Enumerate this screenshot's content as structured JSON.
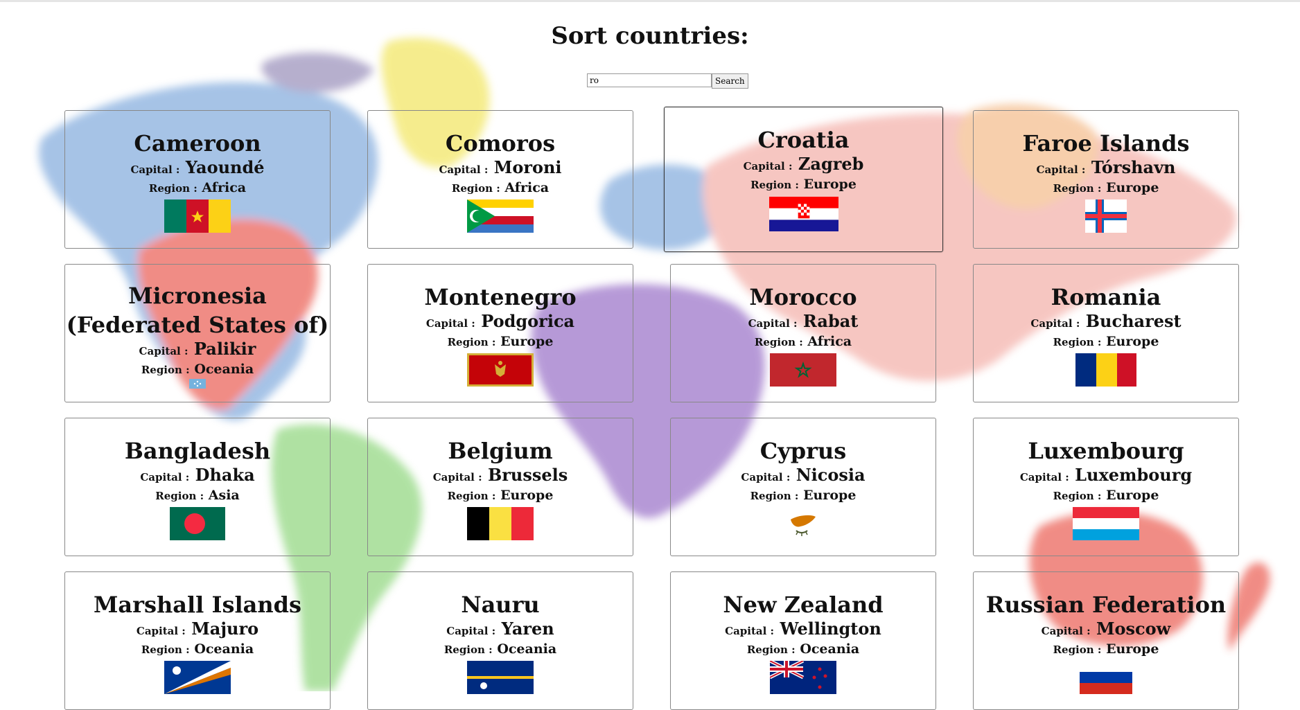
{
  "page": {
    "title": "Sort countries:"
  },
  "search": {
    "value": "ro",
    "button_label": "Search"
  },
  "labels": {
    "capital": "Capital :",
    "region": "Region :"
  },
  "countries": [
    {
      "name": "Cameroon",
      "capital": "Yaoundé",
      "region": "Africa",
      "flag": "cameroon-flag-icon"
    },
    {
      "name": "Comoros",
      "capital": "Moroni",
      "region": "Africa",
      "flag": "comoros-flag-icon"
    },
    {
      "name": "Croatia",
      "capital": "Zagreb",
      "region": "Europe",
      "flag": "croatia-flag-icon"
    },
    {
      "name": "Faroe Islands",
      "capital": "Tórshavn",
      "region": "Europe",
      "flag": "faroe-islands-flag-icon"
    },
    {
      "name": "Micronesia (Federated States of)",
      "capital": "Palikir",
      "region": "Oceania",
      "flag": "micronesia-flag-icon"
    },
    {
      "name": "Montenegro",
      "capital": "Podgorica",
      "region": "Europe",
      "flag": "montenegro-flag-icon"
    },
    {
      "name": "Morocco",
      "capital": "Rabat",
      "region": "Africa",
      "flag": "morocco-flag-icon"
    },
    {
      "name": "Romania",
      "capital": "Bucharest",
      "region": "Europe",
      "flag": "romania-flag-icon"
    },
    {
      "name": "Bangladesh",
      "capital": "Dhaka",
      "region": "Asia",
      "flag": "bangladesh-flag-icon"
    },
    {
      "name": "Belgium",
      "capital": "Brussels",
      "region": "Europe",
      "flag": "belgium-flag-icon"
    },
    {
      "name": "Cyprus",
      "capital": "Nicosia",
      "region": "Europe",
      "flag": "cyprus-flag-icon"
    },
    {
      "name": "Luxembourg",
      "capital": "Luxembourg",
      "region": "Europe",
      "flag": "luxembourg-flag-icon"
    },
    {
      "name": "Marshall Islands",
      "capital": "Majuro",
      "region": "Oceania",
      "flag": "marshall-islands-flag-icon"
    },
    {
      "name": "Nauru",
      "capital": "Yaren",
      "region": "Oceania",
      "flag": "nauru-flag-icon"
    },
    {
      "name": "New Zealand",
      "capital": "Wellington",
      "region": "Oceania",
      "flag": "new-zealand-flag-icon"
    },
    {
      "name": "Russian Federation",
      "capital": "Moscow",
      "region": "Europe",
      "flag": "russia-flag-icon"
    }
  ],
  "colors": {
    "map_blue": "#6f9fd8",
    "map_red": "#e8473a",
    "map_purple": "#8a5bbf",
    "map_green": "#7fd06a",
    "map_yellow": "#f0e24a",
    "map_pink": "#f2a49c",
    "map_orange": "#f3b27a"
  }
}
